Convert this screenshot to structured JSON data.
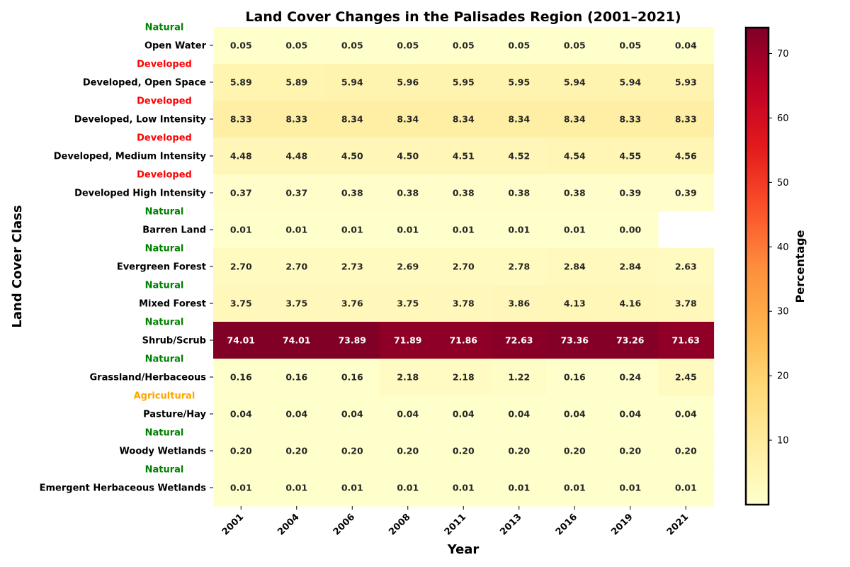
{
  "chart_data": {
    "type": "heatmap",
    "title": "Land Cover Changes in the Palisades Region (2001–2021)",
    "xlabel": "Year",
    "ylabel": "Land Cover Class",
    "colorbar_label": "Percentage",
    "colormap": "YlOrRd",
    "value_range": [
      0,
      74.01
    ],
    "colorbar_ticks": [
      10,
      20,
      30,
      40,
      50,
      60,
      70
    ],
    "years": [
      "2001",
      "2004",
      "2006",
      "2008",
      "2011",
      "2013",
      "2016",
      "2019",
      "2021"
    ],
    "rows": [
      {
        "name": "Open Water",
        "category": "Natural",
        "values": [
          0.05,
          0.05,
          0.05,
          0.05,
          0.05,
          0.05,
          0.05,
          0.05,
          0.04
        ]
      },
      {
        "name": "Developed, Open Space",
        "category": "Developed",
        "values": [
          5.89,
          5.89,
          5.94,
          5.96,
          5.95,
          5.95,
          5.94,
          5.94,
          5.93
        ]
      },
      {
        "name": "Developed, Low Intensity",
        "category": "Developed",
        "values": [
          8.33,
          8.33,
          8.34,
          8.34,
          8.34,
          8.34,
          8.34,
          8.33,
          8.33
        ]
      },
      {
        "name": "Developed, Medium Intensity",
        "category": "Developed",
        "values": [
          4.48,
          4.48,
          4.5,
          4.5,
          4.51,
          4.52,
          4.54,
          4.55,
          4.56
        ]
      },
      {
        "name": "Developed High Intensity",
        "category": "Developed",
        "values": [
          0.37,
          0.37,
          0.38,
          0.38,
          0.38,
          0.38,
          0.38,
          0.39,
          0.39
        ]
      },
      {
        "name": "Barren Land",
        "category": "Natural",
        "values": [
          0.01,
          0.01,
          0.01,
          0.01,
          0.01,
          0.01,
          0.01,
          0.0,
          null
        ]
      },
      {
        "name": "Evergreen Forest",
        "category": "Natural",
        "values": [
          2.7,
          2.7,
          2.73,
          2.69,
          2.7,
          2.78,
          2.84,
          2.84,
          2.63
        ]
      },
      {
        "name": "Mixed Forest",
        "category": "Natural",
        "values": [
          3.75,
          3.75,
          3.76,
          3.75,
          3.78,
          3.86,
          4.13,
          4.16,
          3.78
        ]
      },
      {
        "name": "Shrub/Scrub",
        "category": "Natural",
        "values": [
          74.01,
          74.01,
          73.89,
          71.89,
          71.86,
          72.63,
          73.36,
          73.26,
          71.63
        ]
      },
      {
        "name": "Grassland/Herbaceous",
        "category": "Natural",
        "values": [
          0.16,
          0.16,
          0.16,
          2.18,
          2.18,
          1.22,
          0.16,
          0.24,
          2.45
        ]
      },
      {
        "name": "Pasture/Hay",
        "category": "Agricultural",
        "values": [
          0.04,
          0.04,
          0.04,
          0.04,
          0.04,
          0.04,
          0.04,
          0.04,
          0.04
        ]
      },
      {
        "name": "Woody Wetlands",
        "category": "Natural",
        "values": [
          0.2,
          0.2,
          0.2,
          0.2,
          0.2,
          0.2,
          0.2,
          0.2,
          0.2
        ]
      },
      {
        "name": "Emergent Herbaceous Wetlands",
        "category": "Natural",
        "values": [
          0.01,
          0.01,
          0.01,
          0.01,
          0.01,
          0.01,
          0.01,
          0.01,
          0.01
        ]
      }
    ],
    "category_colors": {
      "Natural": "#008000",
      "Developed": "#ff0000",
      "Agricultural": "#ffa500"
    },
    "grid": false
  }
}
